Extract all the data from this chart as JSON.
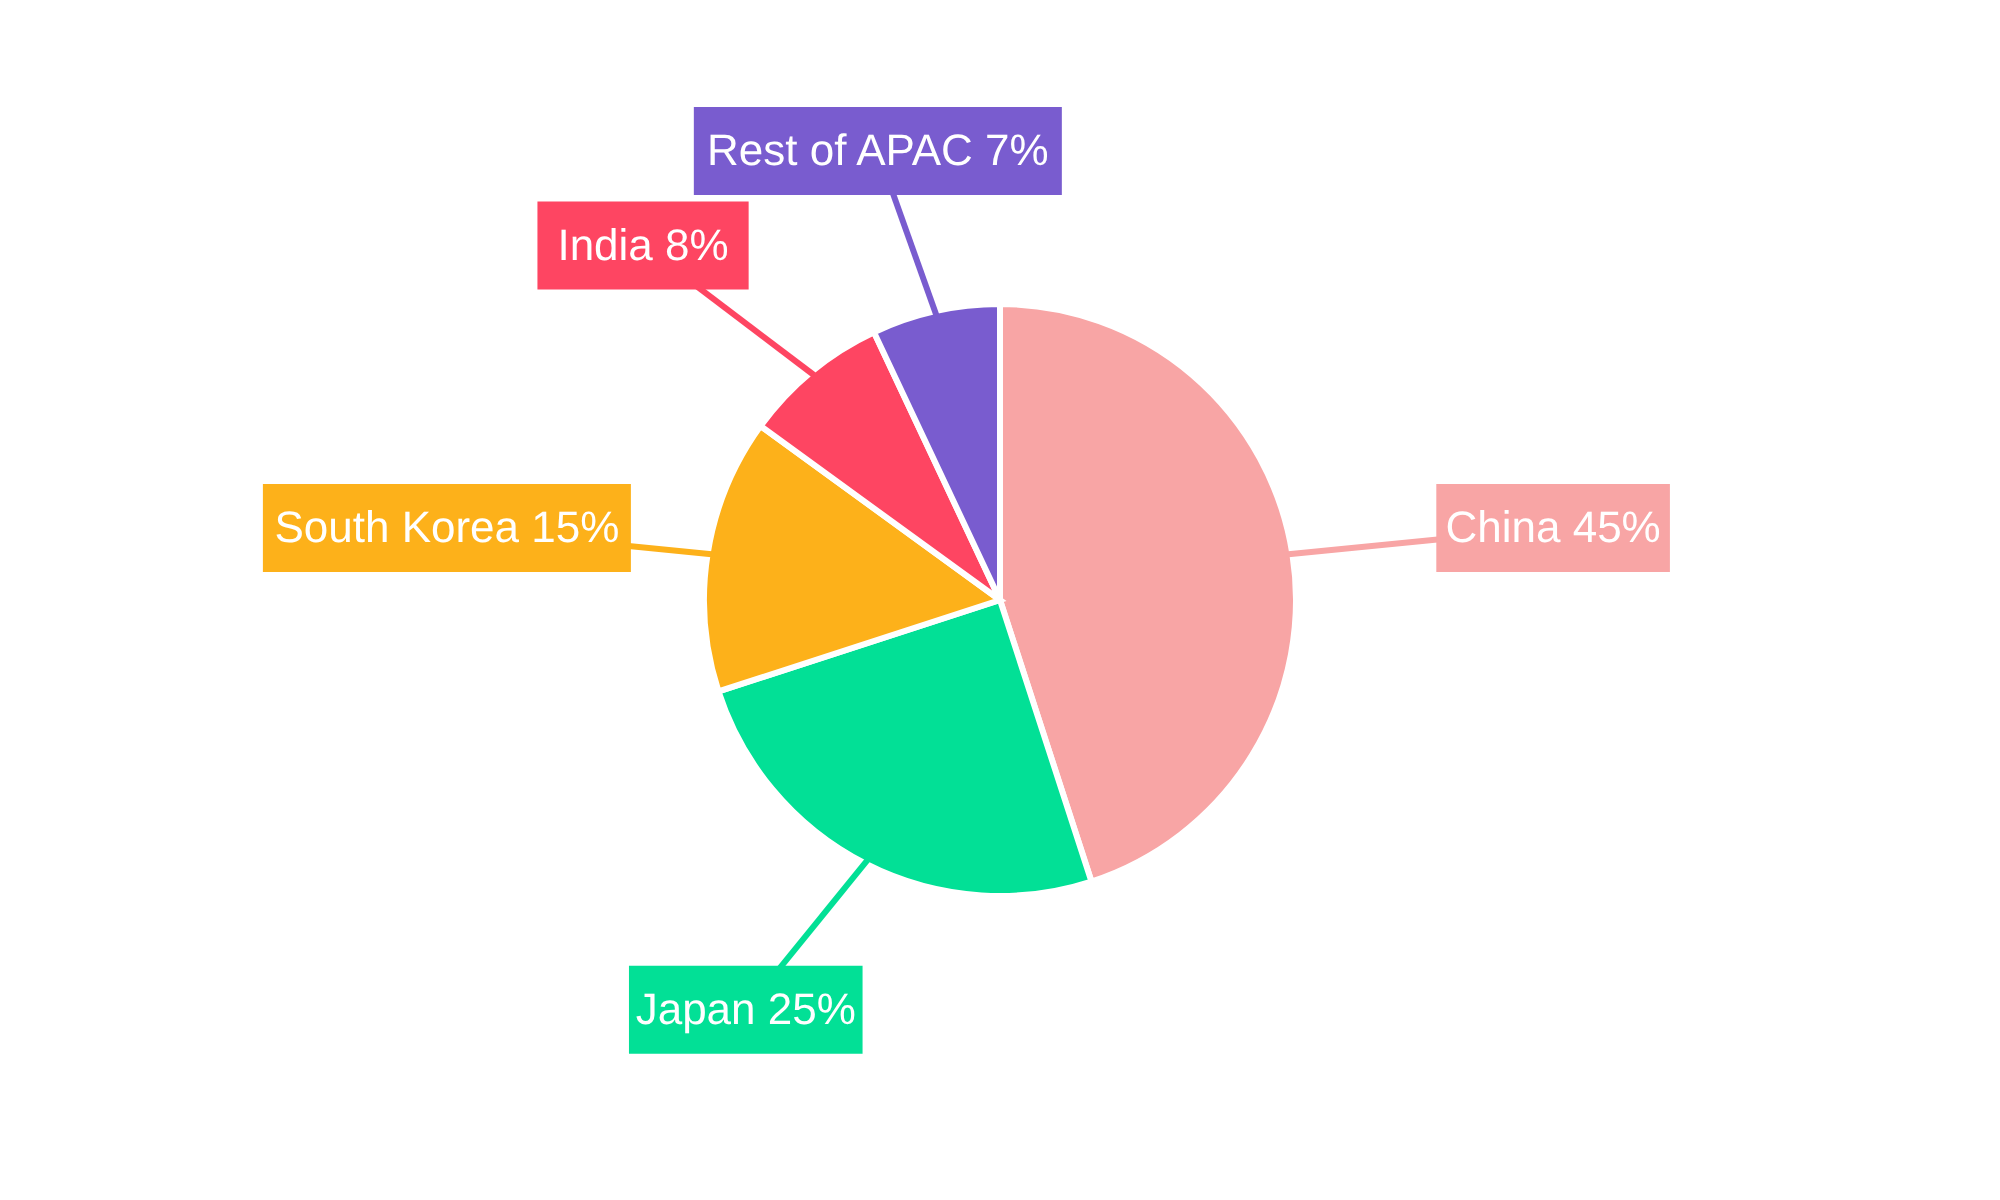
{
  "chart_data": {
    "type": "pie",
    "categories": [
      "China",
      "Japan",
      "South Korea",
      "India",
      "Rest of APAC"
    ],
    "values": [
      45,
      25,
      15,
      8,
      7
    ],
    "value_labels": [
      "45%",
      "25%",
      "15%",
      "8%",
      "7%"
    ],
    "colors": [
      "#f8a5a5",
      "#02e096",
      "#fdb11a",
      "#fe4562",
      "#795ccf"
    ]
  }
}
